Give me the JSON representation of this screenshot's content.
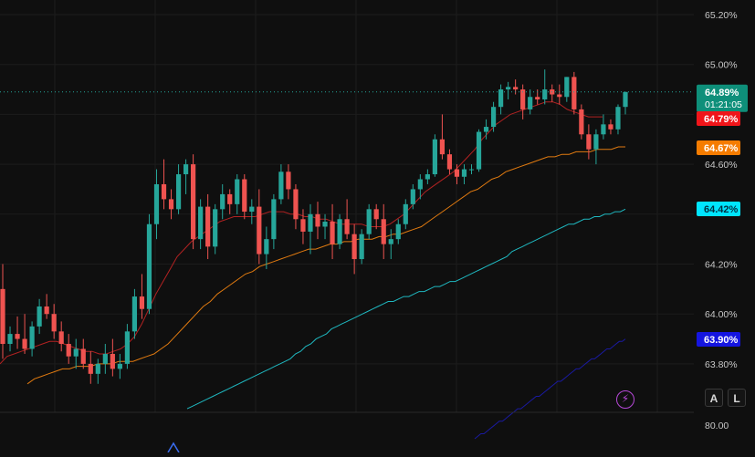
{
  "colors": {
    "background": "#0f0f0f",
    "grid": "#1c1c1c",
    "up": "#26a69a",
    "down": "#ef5350",
    "ma_red": "#b22222",
    "ma_orange": "#e07a10",
    "ma_cyan": "#1fb8c0",
    "ma_navy": "#1a1aa0"
  },
  "chart_data": {
    "type": "candlestick",
    "title": "",
    "ylim": [
      63.7,
      65.3
    ],
    "y_ticks": [
      "65.20%",
      "65.00%",
      "64.60%",
      "64.20%",
      "64.00%",
      "63.80%"
    ],
    "y_tick_values": [
      65.2,
      65.0,
      64.6,
      64.2,
      64.0,
      63.8
    ],
    "current_price": {
      "label": "64.89%",
      "value": 64.89,
      "countdown": "01:21:05"
    },
    "ma_labels": [
      {
        "name": "MA red",
        "label": "64.79%",
        "value": 64.79,
        "color": "#f0151a"
      },
      {
        "name": "MA orange",
        "label": "64.67%",
        "value": 64.67,
        "color": "#f57c00"
      },
      {
        "name": "MA cyan",
        "label": "64.42%",
        "value": 64.42,
        "color": "#00e5ff"
      },
      {
        "name": "MA navy",
        "label": "63.90%",
        "value": 63.9,
        "color": "#1515e0"
      }
    ],
    "ohlc": [
      [
        64.1,
        64.2,
        63.82,
        63.88
      ],
      [
        63.88,
        63.95,
        63.85,
        63.92
      ],
      [
        63.92,
        63.99,
        63.86,
        63.9
      ],
      [
        63.9,
        64.0,
        63.84,
        63.86
      ],
      [
        63.86,
        63.97,
        63.83,
        63.95
      ],
      [
        63.95,
        64.06,
        63.92,
        64.03
      ],
      [
        64.03,
        64.08,
        63.98,
        64.0
      ],
      [
        64.0,
        64.04,
        63.9,
        63.93
      ],
      [
        63.93,
        63.97,
        63.85,
        63.88
      ],
      [
        63.88,
        63.92,
        63.8,
        63.83
      ],
      [
        63.83,
        63.9,
        63.78,
        63.86
      ],
      [
        63.86,
        63.9,
        63.78,
        63.8
      ],
      [
        63.8,
        63.85,
        63.72,
        63.76
      ],
      [
        63.76,
        63.82,
        63.72,
        63.8
      ],
      [
        63.8,
        63.88,
        63.76,
        63.84
      ],
      [
        63.84,
        63.9,
        63.75,
        63.78
      ],
      [
        63.78,
        63.84,
        63.74,
        63.8
      ],
      [
        63.8,
        63.96,
        63.78,
        63.93
      ],
      [
        63.93,
        64.1,
        63.9,
        64.07
      ],
      [
        64.07,
        64.16,
        63.98,
        64.02
      ],
      [
        64.02,
        64.4,
        64.0,
        64.36
      ],
      [
        64.36,
        64.58,
        64.3,
        64.52
      ],
      [
        64.52,
        64.62,
        64.42,
        64.46
      ],
      [
        64.46,
        64.5,
        64.38,
        64.42
      ],
      [
        64.42,
        64.6,
        64.4,
        64.56
      ],
      [
        64.56,
        64.62,
        64.48,
        64.6
      ],
      [
        64.6,
        64.64,
        64.26,
        64.3
      ],
      [
        64.3,
        64.46,
        64.26,
        64.43
      ],
      [
        64.43,
        64.48,
        64.22,
        64.27
      ],
      [
        64.27,
        64.44,
        64.24,
        64.42
      ],
      [
        64.42,
        64.52,
        64.38,
        64.48
      ],
      [
        64.48,
        64.5,
        64.4,
        64.44
      ],
      [
        64.44,
        64.56,
        64.4,
        64.54
      ],
      [
        64.54,
        64.56,
        64.38,
        64.41
      ],
      [
        64.41,
        64.46,
        64.36,
        64.43
      ],
      [
        64.43,
        64.5,
        64.2,
        64.24
      ],
      [
        64.24,
        64.35,
        64.18,
        64.3
      ],
      [
        64.3,
        64.48,
        64.26,
        64.46
      ],
      [
        64.46,
        64.6,
        64.44,
        64.57
      ],
      [
        64.57,
        64.6,
        64.46,
        64.5
      ],
      [
        64.5,
        64.52,
        64.34,
        64.38
      ],
      [
        64.38,
        64.42,
        64.28,
        64.33
      ],
      [
        64.33,
        64.44,
        64.24,
        64.4
      ],
      [
        64.4,
        64.45,
        64.3,
        64.35
      ],
      [
        64.35,
        64.4,
        64.3,
        64.37
      ],
      [
        64.37,
        64.44,
        64.22,
        64.28
      ],
      [
        64.28,
        64.4,
        64.26,
        64.38
      ],
      [
        64.38,
        64.46,
        64.3,
        64.32
      ],
      [
        64.32,
        64.36,
        64.16,
        64.22
      ],
      [
        64.22,
        64.34,
        64.2,
        64.32
      ],
      [
        64.32,
        64.44,
        64.3,
        64.42
      ],
      [
        64.42,
        64.44,
        64.34,
        64.38
      ],
      [
        64.38,
        64.44,
        64.22,
        64.28
      ],
      [
        64.28,
        64.34,
        64.22,
        64.3
      ],
      [
        64.3,
        64.38,
        64.28,
        64.36
      ],
      [
        64.36,
        64.46,
        64.34,
        64.44
      ],
      [
        64.44,
        64.52,
        64.42,
        64.5
      ],
      [
        64.5,
        64.56,
        64.46,
        64.54
      ],
      [
        64.54,
        64.58,
        64.52,
        64.56
      ],
      [
        64.56,
        64.72,
        64.55,
        64.7
      ],
      [
        64.7,
        64.8,
        64.62,
        64.64
      ],
      [
        64.64,
        64.66,
        64.56,
        64.58
      ],
      [
        64.58,
        64.6,
        64.52,
        64.55
      ],
      [
        64.55,
        64.6,
        64.52,
        64.58
      ],
      [
        64.58,
        64.6,
        64.56,
        64.58
      ],
      [
        64.58,
        64.74,
        64.57,
        64.73
      ],
      [
        64.73,
        64.78,
        64.7,
        64.75
      ],
      [
        64.75,
        64.85,
        64.73,
        64.83
      ],
      [
        64.83,
        64.92,
        64.8,
        64.9
      ],
      [
        64.9,
        64.93,
        64.86,
        64.91
      ],
      [
        64.91,
        64.94,
        64.88,
        64.9
      ],
      [
        64.9,
        64.92,
        64.78,
        64.82
      ],
      [
        64.82,
        64.9,
        64.8,
        64.87
      ],
      [
        64.87,
        64.9,
        64.84,
        64.86
      ],
      [
        64.86,
        64.98,
        64.84,
        64.9
      ],
      [
        64.9,
        64.92,
        64.85,
        64.88
      ],
      [
        64.88,
        64.92,
        64.84,
        64.87
      ],
      [
        64.87,
        64.95,
        64.85,
        64.95
      ],
      [
        64.95,
        64.97,
        64.8,
        64.82
      ],
      [
        64.82,
        64.84,
        64.7,
        64.72
      ],
      [
        64.72,
        64.76,
        64.62,
        64.66
      ],
      [
        64.66,
        64.74,
        64.6,
        64.72
      ],
      [
        64.72,
        64.8,
        64.7,
        64.76
      ],
      [
        64.76,
        64.78,
        64.72,
        64.74
      ],
      [
        64.74,
        64.84,
        64.72,
        64.83
      ],
      [
        64.83,
        64.88,
        64.8,
        64.89
      ]
    ],
    "ma_series": {
      "red": [
        63.8,
        63.83,
        63.84,
        63.85,
        63.86,
        63.87,
        63.88,
        63.89,
        63.89,
        63.88,
        63.87,
        63.86,
        63.85,
        63.85,
        63.84,
        63.84,
        63.85,
        63.86,
        63.88,
        63.91,
        63.96,
        64.02,
        64.08,
        64.13,
        64.18,
        64.23,
        64.26,
        64.29,
        64.31,
        64.33,
        64.35,
        64.37,
        64.38,
        64.39,
        64.39,
        64.39,
        64.39,
        64.4,
        64.41,
        64.41,
        64.41,
        64.4,
        64.4,
        64.39,
        64.39,
        64.38,
        64.38,
        64.37,
        64.36,
        64.36,
        64.36,
        64.36,
        64.35,
        64.35,
        64.35,
        64.36,
        64.38,
        64.4,
        64.43,
        64.46,
        64.49,
        64.51,
        64.53,
        64.55,
        64.57,
        64.6,
        64.63,
        64.66,
        64.7,
        64.73,
        64.76,
        64.78,
        64.8,
        64.81,
        64.82,
        64.83,
        64.84,
        64.85,
        64.85,
        64.84,
        64.82,
        64.81,
        64.8,
        64.79,
        64.79,
        64.79
      ],
      "orange": [
        63.72,
        63.74,
        63.75,
        63.76,
        63.77,
        63.78,
        63.78,
        63.79,
        63.79,
        63.79,
        63.8,
        63.8,
        63.8,
        63.81,
        63.81,
        63.81,
        63.82,
        63.83,
        63.84,
        63.86,
        63.88,
        63.91,
        63.94,
        63.97,
        64.0,
        64.03,
        64.05,
        64.08,
        64.1,
        64.12,
        64.14,
        64.16,
        64.17,
        64.19,
        64.2,
        64.21,
        64.22,
        64.23,
        64.24,
        64.25,
        64.26,
        64.26,
        64.27,
        64.28,
        64.28,
        64.29,
        64.29,
        64.3,
        64.3,
        64.3,
        64.31,
        64.31,
        64.32,
        64.32,
        64.33,
        64.34,
        64.35,
        64.37,
        64.39,
        64.41,
        64.43,
        64.45,
        64.47,
        64.49,
        64.5,
        64.52,
        64.54,
        64.55,
        64.57,
        64.58,
        64.59,
        64.6,
        64.61,
        64.62,
        64.63,
        64.63,
        64.64,
        64.64,
        64.65,
        64.65,
        64.65,
        64.66,
        64.66,
        64.66,
        64.67,
        64.67
      ],
      "cyan": [
        63.62,
        63.63,
        63.64,
        63.65,
        63.66,
        63.67,
        63.68,
        63.69,
        63.7,
        63.71,
        63.72,
        63.73,
        63.74,
        63.75,
        63.76,
        63.77,
        63.78,
        63.79,
        63.8,
        63.81,
        63.82,
        63.84,
        63.85,
        63.87,
        63.88,
        63.9,
        63.91,
        63.92,
        63.94,
        63.95,
        63.96,
        63.97,
        63.98,
        63.99,
        64.0,
        64.01,
        64.02,
        64.03,
        64.04,
        64.05,
        64.05,
        64.06,
        64.07,
        64.07,
        64.08,
        64.09,
        64.09,
        64.1,
        64.11,
        64.11,
        64.12,
        64.13,
        64.13,
        64.14,
        64.15,
        64.16,
        64.17,
        64.18,
        64.19,
        64.2,
        64.21,
        64.22,
        64.23,
        64.25,
        64.26,
        64.27,
        64.28,
        64.29,
        64.3,
        64.31,
        64.32,
        64.33,
        64.34,
        64.35,
        64.36,
        64.36,
        64.37,
        64.38,
        64.38,
        64.39,
        64.39,
        64.4,
        64.4,
        64.41,
        64.41,
        64.42
      ],
      "navy": [
        63.5,
        63.51,
        63.52,
        63.52,
        63.53,
        63.54,
        63.55,
        63.56,
        63.57,
        63.57,
        63.58,
        63.59,
        63.6,
        63.61,
        63.62,
        63.62,
        63.63,
        63.64,
        63.65,
        63.66,
        63.67,
        63.67,
        63.68,
        63.69,
        63.7,
        63.71,
        63.72,
        63.73,
        63.73,
        63.74,
        63.75,
        63.76,
        63.77,
        63.78,
        63.78,
        63.79,
        63.8,
        63.81,
        63.82,
        63.82,
        63.83,
        63.84,
        63.85,
        63.86,
        63.86,
        63.87,
        63.88,
        63.89,
        63.89,
        63.9
      ]
    },
    "indicator_pane": {
      "tick_label": "80.00",
      "tick_value": 80.0
    }
  },
  "controls": {
    "auto_label": "A",
    "log_label": "L",
    "bolt_glyph": "⚡"
  }
}
